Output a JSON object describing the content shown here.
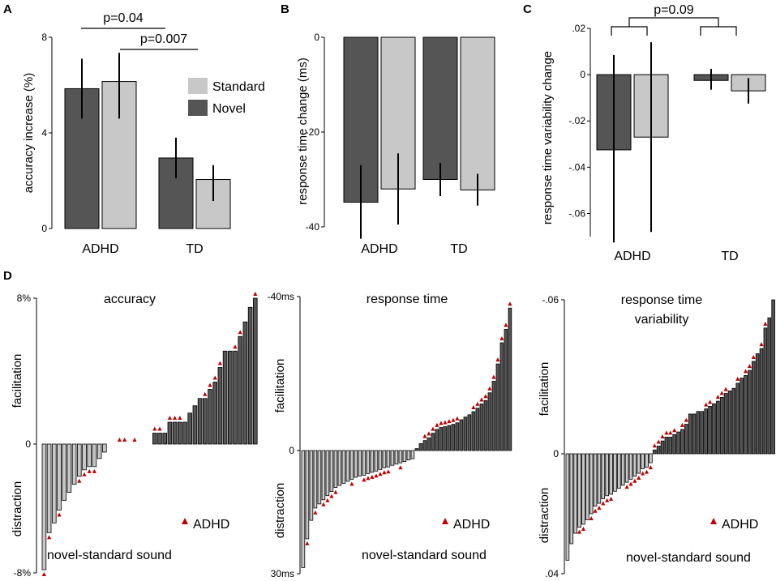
{
  "colors": {
    "novel": "#555555",
    "standard": "#c8c8c8",
    "adhd_marker": "#c00000"
  },
  "chart_data": [
    {
      "panel": "A",
      "type": "bar",
      "ylabel": "accuracy increase (%)",
      "ylim": [
        0,
        8
      ],
      "yticks": [
        "0",
        "4",
        "8"
      ],
      "categories": [
        "ADHD",
        "TD"
      ],
      "series": [
        {
          "name": "Novel",
          "values": [
            5.85,
            2.95
          ],
          "err_low": [
            4.6,
            2.1
          ],
          "err_high": [
            7.1,
            3.8
          ]
        },
        {
          "name": "Standard",
          "values": [
            6.15,
            2.05
          ],
          "err_low": [
            4.6,
            1.15
          ],
          "err_high": [
            7.35,
            2.65
          ]
        }
      ],
      "legend": [
        "Standard",
        "Novel"
      ],
      "annotations": [
        "p=0.04",
        "p=0.007"
      ]
    },
    {
      "panel": "B",
      "type": "bar",
      "ylabel": "response time change (ms)",
      "ylim": [
        -40,
        0
      ],
      "yticks": [
        "0",
        "-20",
        "-40"
      ],
      "categories": [
        "ADHD",
        "TD"
      ],
      "series": [
        {
          "name": "Novel",
          "values": [
            -34.8,
            -30.0
          ],
          "err_low": [
            -42.5,
            -33.5
          ],
          "err_high": [
            -27.0,
            -26.5
          ]
        },
        {
          "name": "Standard",
          "values": [
            -32.0,
            -32.2
          ],
          "err_low": [
            -39.5,
            -35.5
          ],
          "err_high": [
            -24.5,
            -28.8
          ]
        }
      ]
    },
    {
      "panel": "C",
      "type": "bar",
      "ylabel": "response time variability change",
      "ylim": [
        -0.07,
        0.02
      ],
      "yticks": [
        ".02",
        "0",
        "-.02",
        "-.04",
        "-.06"
      ],
      "categories": [
        "ADHD",
        "TD"
      ],
      "series": [
        {
          "name": "Novel",
          "values": [
            -0.0325,
            -0.0025
          ],
          "err_low": [
            -0.0725,
            -0.0065
          ],
          "err_high": [
            0.0085,
            0.0025
          ]
        },
        {
          "name": "Standard",
          "values": [
            -0.027,
            -0.007
          ],
          "err_low": [
            -0.068,
            -0.0125
          ],
          "err_high": [
            0.014,
            -0.0015
          ]
        }
      ],
      "annotations": [
        "p=0.09"
      ]
    },
    {
      "panel": "D1",
      "type": "bar",
      "title": "accuracy",
      "ylim": [
        -8,
        8
      ],
      "ytop": "8%",
      "yzero": "0",
      "ybottom": "-8%",
      "ylabel_top": "facilitation",
      "ylabel_bottom": "distraction",
      "legend": "ADHD",
      "xlabel": "novel-standard sound",
      "values": [
        -7.8,
        -5.5,
        -4.9,
        -4.1,
        -3.5,
        -3.0,
        -2.5,
        -2.0,
        -1.6,
        -1.4,
        -1.4,
        -0.9,
        -0.5,
        0,
        0,
        0,
        0,
        0,
        0,
        0,
        0,
        0,
        0.6,
        0.6,
        0.6,
        1.2,
        1.2,
        1.2,
        1.2,
        1.7,
        2.1,
        2.5,
        2.5,
        3.0,
        3.4,
        4.2,
        5.1,
        5.1,
        5.1,
        5.9,
        6.7,
        7.5,
        8.0
      ],
      "adhd": [
        0,
        1,
        3,
        7,
        8,
        9,
        10,
        15,
        16,
        18,
        22,
        23,
        25,
        26,
        27,
        32,
        33,
        34,
        35,
        38,
        39,
        42
      ]
    },
    {
      "panel": "D2",
      "type": "bar",
      "title": "response time",
      "ylim": [
        30,
        -40
      ],
      "ytop": "-40ms",
      "yzero": "0",
      "ybottom": "30ms",
      "ylabel_top": "facilitation",
      "ylabel_bottom": "distraction",
      "legend": "ADHD",
      "xlabel": "novel-standard sound",
      "values": [
        28.5,
        21.5,
        17.0,
        14.0,
        13.0,
        12.0,
        11.0,
        10.0,
        9.0,
        8.5,
        8.0,
        7.5,
        7.0,
        6.5,
        6.2,
        6.0,
        5.6,
        5.3,
        5.0,
        4.6,
        4.2,
        4.0,
        3.6,
        3.3,
        3.0,
        2.7,
        2.3,
        2.0,
        -0.5,
        -1.8,
        -2.6,
        -3.3,
        -4.5,
        -5.5,
        -6.0,
        -6.2,
        -6.5,
        -6.8,
        -7.2,
        -8.0,
        -8.7,
        -9.3,
        -10.1,
        -11.0,
        -12.1,
        -13.0,
        -15.0,
        -18.0,
        -22.5,
        -28.0,
        -31.5,
        -37.0
      ],
      "adhd": [
        1,
        3,
        5,
        6,
        7,
        8,
        12,
        15,
        16,
        17,
        18,
        19,
        20,
        21,
        24,
        30,
        31,
        32,
        33,
        34,
        35,
        36,
        37,
        38,
        42,
        43,
        44,
        45,
        46,
        47,
        48,
        49,
        50,
        51
      ]
    },
    {
      "panel": "D3",
      "type": "bar",
      "title": "response time variability",
      "ylim": [
        0.04,
        -0.06
      ],
      "ytop": "-.06",
      "yzero": "0",
      "ybottom": ".04",
      "ylabel_top": "facilitation",
      "ylabel_bottom": "distraction",
      "legend": "ADHD",
      "xlabel": "novel-standard sound",
      "values": [
        0.0355,
        0.03,
        0.0265,
        0.0245,
        0.0235,
        0.022,
        0.02,
        0.0175,
        0.0165,
        0.015,
        0.014,
        0.0135,
        0.0125,
        0.0115,
        0.0105,
        0.0095,
        0.0085,
        0.0075,
        0.0065,
        0.005,
        0.0045,
        0.003,
        -0.0015,
        -0.003,
        -0.005,
        -0.0065,
        -0.0065,
        -0.0075,
        -0.0085,
        -0.0095,
        -0.0115,
        -0.0155,
        -0.0155,
        -0.0165,
        -0.0165,
        -0.0175,
        -0.0185,
        -0.0195,
        -0.0205,
        -0.022,
        -0.0235,
        -0.0245,
        -0.0255,
        -0.0275,
        -0.0295,
        -0.0305,
        -0.0325,
        -0.036,
        -0.039,
        -0.041,
        -0.049,
        -0.053,
        -0.06
      ],
      "adhd": [
        3,
        4,
        6,
        7,
        8,
        9,
        10,
        11,
        15,
        16,
        17,
        18,
        19,
        20,
        21,
        22,
        23,
        24,
        25,
        26,
        27,
        29,
        30,
        35,
        36,
        38,
        39,
        40,
        43,
        45,
        46,
        47,
        49,
        50
      ]
    }
  ]
}
